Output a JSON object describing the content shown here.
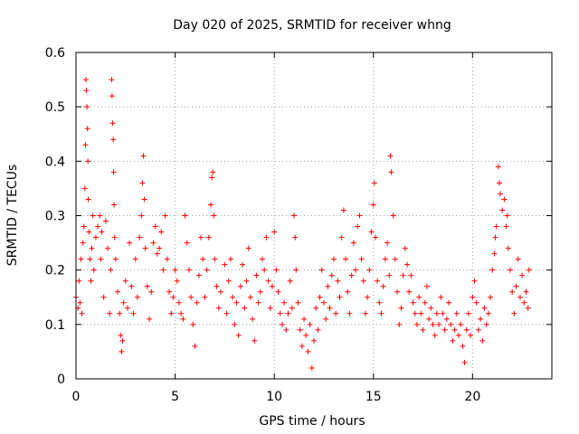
{
  "chart_data": {
    "type": "scatter",
    "title": "Day 020 of 2025, SRMTID for receiver whng",
    "xlabel": "GPS time / hours",
    "ylabel": "SRMTID / TECUs",
    "xlim": [
      0,
      24
    ],
    "ylim": [
      0,
      0.6
    ],
    "x_ticks": [
      0,
      5,
      10,
      15,
      20
    ],
    "y_ticks": [
      0,
      0.1,
      0.2,
      0.3,
      0.4,
      0.5,
      0.6
    ],
    "x_tick_labels": [
      "0",
      "5",
      "10",
      "15",
      "20"
    ],
    "y_tick_labels": [
      "0",
      "0.1",
      "0.2",
      "0.3",
      "0.4",
      "0.5",
      "0.6"
    ],
    "grid": true,
    "marker": "plus",
    "series": [
      {
        "name": "SRMTID",
        "color": "#ff0000",
        "points": [
          [
            0.0,
            0.15
          ],
          [
            0.1,
            0.13
          ],
          [
            0.15,
            0.18
          ],
          [
            0.2,
            0.14
          ],
          [
            0.25,
            0.22
          ],
          [
            0.3,
            0.12
          ],
          [
            0.35,
            0.25
          ],
          [
            0.4,
            0.28
          ],
          [
            0.45,
            0.35
          ],
          [
            0.48,
            0.43
          ],
          [
            0.5,
            0.55
          ],
          [
            0.52,
            0.53
          ],
          [
            0.55,
            0.5
          ],
          [
            0.58,
            0.46
          ],
          [
            0.6,
            0.4
          ],
          [
            0.62,
            0.33
          ],
          [
            0.65,
            0.27
          ],
          [
            0.7,
            0.22
          ],
          [
            0.75,
            0.18
          ],
          [
            0.8,
            0.24
          ],
          [
            0.85,
            0.3
          ],
          [
            0.9,
            0.2
          ],
          [
            1.0,
            0.26
          ],
          [
            1.1,
            0.28
          ],
          [
            1.2,
            0.3
          ],
          [
            1.25,
            0.22
          ],
          [
            1.3,
            0.27
          ],
          [
            1.4,
            0.15
          ],
          [
            1.5,
            0.29
          ],
          [
            1.6,
            0.24
          ],
          [
            1.7,
            0.12
          ],
          [
            1.75,
            0.2
          ],
          [
            1.8,
            0.55
          ],
          [
            1.82,
            0.52
          ],
          [
            1.85,
            0.47
          ],
          [
            1.88,
            0.44
          ],
          [
            1.9,
            0.38
          ],
          [
            1.92,
            0.32
          ],
          [
            1.95,
            0.26
          ],
          [
            2.0,
            0.22
          ],
          [
            2.1,
            0.16
          ],
          [
            2.2,
            0.12
          ],
          [
            2.25,
            0.08
          ],
          [
            2.3,
            0.05
          ],
          [
            2.35,
            0.07
          ],
          [
            2.4,
            0.14
          ],
          [
            2.5,
            0.18
          ],
          [
            2.6,
            0.13
          ],
          [
            2.7,
            0.25
          ],
          [
            2.8,
            0.17
          ],
          [
            2.9,
            0.12
          ],
          [
            3.0,
            0.22
          ],
          [
            3.1,
            0.15
          ],
          [
            3.2,
            0.26
          ],
          [
            3.3,
            0.3
          ],
          [
            3.35,
            0.36
          ],
          [
            3.4,
            0.41
          ],
          [
            3.45,
            0.33
          ],
          [
            3.5,
            0.24
          ],
          [
            3.6,
            0.17
          ],
          [
            3.7,
            0.11
          ],
          [
            3.8,
            0.16
          ],
          [
            3.9,
            0.25
          ],
          [
            4.0,
            0.28
          ],
          [
            4.1,
            0.23
          ],
          [
            4.2,
            0.24
          ],
          [
            4.3,
            0.27
          ],
          [
            4.4,
            0.2
          ],
          [
            4.5,
            0.3
          ],
          [
            4.6,
            0.22
          ],
          [
            4.7,
            0.16
          ],
          [
            4.8,
            0.12
          ],
          [
            4.9,
            0.15
          ],
          [
            5.0,
            0.2
          ],
          [
            5.1,
            0.18
          ],
          [
            5.2,
            0.14
          ],
          [
            5.3,
            0.12
          ],
          [
            5.4,
            0.11
          ],
          [
            5.5,
            0.3
          ],
          [
            5.6,
            0.25
          ],
          [
            5.7,
            0.2
          ],
          [
            5.8,
            0.15
          ],
          [
            5.9,
            0.1
          ],
          [
            6.0,
            0.06
          ],
          [
            6.1,
            0.14
          ],
          [
            6.2,
            0.19
          ],
          [
            6.3,
            0.26
          ],
          [
            6.4,
            0.22
          ],
          [
            6.5,
            0.15
          ],
          [
            6.6,
            0.2
          ],
          [
            6.7,
            0.26
          ],
          [
            6.8,
            0.32
          ],
          [
            6.85,
            0.37
          ],
          [
            6.9,
            0.38
          ],
          [
            6.95,
            0.3
          ],
          [
            7.0,
            0.22
          ],
          [
            7.1,
            0.17
          ],
          [
            7.2,
            0.13
          ],
          [
            7.3,
            0.16
          ],
          [
            7.5,
            0.21
          ],
          [
            7.6,
            0.12
          ],
          [
            7.7,
            0.18
          ],
          [
            7.8,
            0.22
          ],
          [
            7.9,
            0.15
          ],
          [
            8.0,
            0.1
          ],
          [
            8.1,
            0.14
          ],
          [
            8.2,
            0.08
          ],
          [
            8.3,
            0.17
          ],
          [
            8.4,
            0.21
          ],
          [
            8.5,
            0.13
          ],
          [
            8.6,
            0.18
          ],
          [
            8.7,
            0.24
          ],
          [
            8.8,
            0.15
          ],
          [
            8.9,
            0.11
          ],
          [
            9.0,
            0.07
          ],
          [
            9.1,
            0.19
          ],
          [
            9.2,
            0.14
          ],
          [
            9.3,
            0.16
          ],
          [
            9.4,
            0.22
          ],
          [
            9.5,
            0.2
          ],
          [
            9.6,
            0.26
          ],
          [
            9.7,
            0.18
          ],
          [
            9.8,
            0.13
          ],
          [
            9.9,
            0.17
          ],
          [
            10.0,
            0.27
          ],
          [
            10.1,
            0.2
          ],
          [
            10.2,
            0.16
          ],
          [
            10.3,
            0.12
          ],
          [
            10.4,
            0.1
          ],
          [
            10.5,
            0.14
          ],
          [
            10.6,
            0.09
          ],
          [
            10.7,
            0.12
          ],
          [
            10.8,
            0.18
          ],
          [
            10.9,
            0.13
          ],
          [
            11.0,
            0.3
          ],
          [
            11.05,
            0.26
          ],
          [
            11.1,
            0.2
          ],
          [
            11.2,
            0.14
          ],
          [
            11.3,
            0.09
          ],
          [
            11.4,
            0.06
          ],
          [
            11.5,
            0.11
          ],
          [
            11.6,
            0.08
          ],
          [
            11.7,
            0.05
          ],
          [
            11.8,
            0.1
          ],
          [
            11.9,
            0.02
          ],
          [
            12.0,
            0.07
          ],
          [
            12.1,
            0.13
          ],
          [
            12.2,
            0.09
          ],
          [
            12.3,
            0.15
          ],
          [
            12.4,
            0.2
          ],
          [
            12.5,
            0.14
          ],
          [
            12.6,
            0.11
          ],
          [
            12.7,
            0.17
          ],
          [
            12.8,
            0.13
          ],
          [
            12.9,
            0.19
          ],
          [
            13.0,
            0.22
          ],
          [
            13.1,
            0.12
          ],
          [
            13.2,
            0.18
          ],
          [
            13.3,
            0.15
          ],
          [
            13.4,
            0.26
          ],
          [
            13.5,
            0.31
          ],
          [
            13.6,
            0.22
          ],
          [
            13.7,
            0.16
          ],
          [
            13.8,
            0.12
          ],
          [
            13.9,
            0.19
          ],
          [
            14.0,
            0.25
          ],
          [
            14.1,
            0.2
          ],
          [
            14.2,
            0.28
          ],
          [
            14.3,
            0.3
          ],
          [
            14.4,
            0.22
          ],
          [
            14.5,
            0.18
          ],
          [
            14.6,
            0.12
          ],
          [
            14.7,
            0.15
          ],
          [
            14.8,
            0.2
          ],
          [
            14.9,
            0.27
          ],
          [
            15.0,
            0.32
          ],
          [
            15.05,
            0.36
          ],
          [
            15.1,
            0.26
          ],
          [
            15.2,
            0.18
          ],
          [
            15.3,
            0.14
          ],
          [
            15.4,
            0.12
          ],
          [
            15.5,
            0.17
          ],
          [
            15.6,
            0.22
          ],
          [
            15.7,
            0.25
          ],
          [
            15.8,
            0.19
          ],
          [
            15.85,
            0.41
          ],
          [
            15.9,
            0.38
          ],
          [
            16.0,
            0.3
          ],
          [
            16.1,
            0.22
          ],
          [
            16.2,
            0.16
          ],
          [
            16.3,
            0.1
          ],
          [
            16.4,
            0.13
          ],
          [
            16.5,
            0.19
          ],
          [
            16.6,
            0.24
          ],
          [
            16.7,
            0.21
          ],
          [
            16.8,
            0.16
          ],
          [
            16.9,
            0.19
          ],
          [
            17.0,
            0.14
          ],
          [
            17.1,
            0.12
          ],
          [
            17.2,
            0.1
          ],
          [
            17.3,
            0.15
          ],
          [
            17.4,
            0.12
          ],
          [
            17.5,
            0.09
          ],
          [
            17.6,
            0.14
          ],
          [
            17.7,
            0.17
          ],
          [
            17.8,
            0.11
          ],
          [
            17.9,
            0.13
          ],
          [
            18.0,
            0.1
          ],
          [
            18.1,
            0.08
          ],
          [
            18.2,
            0.12
          ],
          [
            18.3,
            0.1
          ],
          [
            18.4,
            0.15
          ],
          [
            18.5,
            0.12
          ],
          [
            18.6,
            0.09
          ],
          [
            18.7,
            0.11
          ],
          [
            18.8,
            0.14
          ],
          [
            18.9,
            0.1
          ],
          [
            19.0,
            0.07
          ],
          [
            19.1,
            0.09
          ],
          [
            19.2,
            0.12
          ],
          [
            19.3,
            0.08
          ],
          [
            19.4,
            0.1
          ],
          [
            19.5,
            0.06
          ],
          [
            19.6,
            0.03
          ],
          [
            19.7,
            0.09
          ],
          [
            19.8,
            0.12
          ],
          [
            19.9,
            0.08
          ],
          [
            20.0,
            0.15
          ],
          [
            20.1,
            0.18
          ],
          [
            20.2,
            0.14
          ],
          [
            20.3,
            0.09
          ],
          [
            20.4,
            0.11
          ],
          [
            20.5,
            0.07
          ],
          [
            20.6,
            0.13
          ],
          [
            20.7,
            0.1
          ],
          [
            20.8,
            0.12
          ],
          [
            20.9,
            0.15
          ],
          [
            21.0,
            0.2
          ],
          [
            21.1,
            0.23
          ],
          [
            21.15,
            0.26
          ],
          [
            21.2,
            0.28
          ],
          [
            21.3,
            0.39
          ],
          [
            21.35,
            0.36
          ],
          [
            21.4,
            0.34
          ],
          [
            21.5,
            0.31
          ],
          [
            21.6,
            0.33
          ],
          [
            21.7,
            0.28
          ],
          [
            21.75,
            0.3
          ],
          [
            21.8,
            0.24
          ],
          [
            21.9,
            0.2
          ],
          [
            22.0,
            0.16
          ],
          [
            22.1,
            0.12
          ],
          [
            22.2,
            0.17
          ],
          [
            22.3,
            0.22
          ],
          [
            22.4,
            0.15
          ],
          [
            22.5,
            0.19
          ],
          [
            22.6,
            0.14
          ],
          [
            22.7,
            0.16
          ],
          [
            22.8,
            0.13
          ],
          [
            22.85,
            0.2
          ]
        ]
      }
    ]
  }
}
